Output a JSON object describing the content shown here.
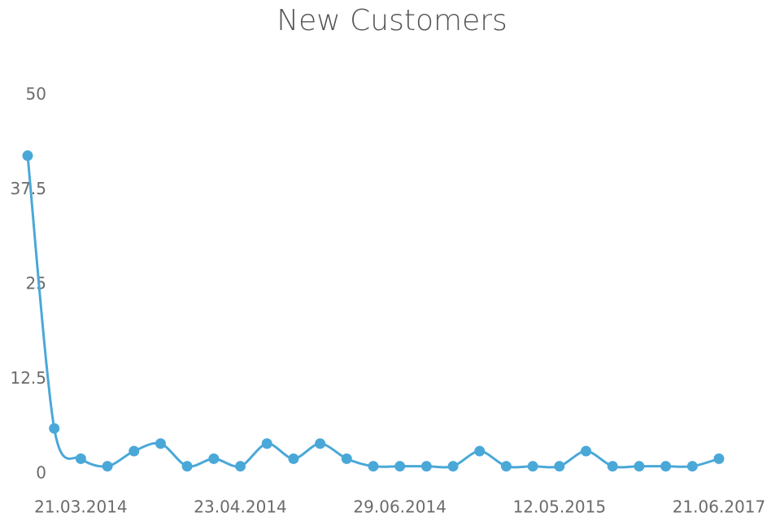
{
  "chart_data": {
    "type": "line",
    "title": "New Customers",
    "categories": [
      null,
      null,
      "21.03.2014",
      null,
      null,
      null,
      null,
      null,
      "23.04.2014",
      null,
      null,
      null,
      null,
      null,
      "29.06.2014",
      null,
      null,
      null,
      null,
      null,
      "12.05.2015",
      null,
      null,
      null,
      null,
      null,
      "21.06.2017"
    ],
    "series": [
      {
        "name": "New Customers",
        "color": "#4aa8d8",
        "values": [
          42,
          6,
          2,
          1,
          3,
          4,
          1,
          2,
          1,
          4,
          2,
          4,
          2,
          1,
          1,
          1,
          1,
          3,
          1,
          1,
          1,
          3,
          1,
          1,
          1,
          1,
          2
        ]
      }
    ],
    "ylim": [
      0,
      50
    ],
    "yticks": [
      0,
      12.5,
      25,
      37.5,
      50
    ],
    "grid": false
  }
}
